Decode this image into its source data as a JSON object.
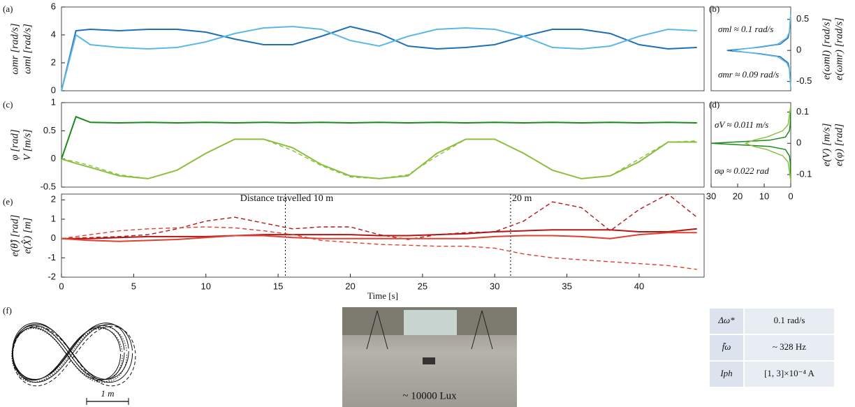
{
  "chart_data": [
    {
      "type": "line",
      "label": "(a)",
      "ylabels": [
        {
          "text": "ωmr [rad/s]",
          "color": "#5bb8e8"
        },
        {
          "text": "ωml [rad/s]",
          "color": "#1f6fb5"
        }
      ],
      "x": [
        0,
        1,
        2,
        4,
        6,
        8,
        10,
        12,
        14,
        16,
        18,
        20,
        22,
        24,
        26,
        28,
        30,
        32,
        34,
        36,
        38,
        40,
        42,
        44
      ],
      "xlim": [
        0,
        44.5
      ],
      "ylim": [
        0,
        6
      ],
      "yticks": [
        0,
        2,
        4,
        6
      ],
      "series": [
        {
          "color": "#1f6fb5",
          "values": [
            0,
            4.3,
            4.4,
            4.3,
            4.4,
            4.4,
            4.2,
            3.7,
            3.3,
            3.3,
            3.9,
            4.6,
            4.1,
            3.2,
            3.0,
            3.1,
            3.3,
            3.9,
            4.4,
            4.4,
            4.1,
            3.3,
            3.0,
            3.1
          ]
        },
        {
          "color": "#5bb8e8",
          "values": [
            0,
            4.0,
            3.3,
            3.1,
            3.0,
            3.1,
            3.5,
            4.1,
            4.5,
            4.6,
            4.4,
            3.6,
            3.2,
            3.9,
            4.4,
            4.5,
            4.4,
            3.9,
            3.1,
            3.0,
            3.2,
            3.9,
            4.4,
            4.3
          ]
        }
      ]
    },
    {
      "type": "density",
      "label": "(b)",
      "axis_side": "right",
      "ylabels": [
        {
          "text": "e(ωml) [rad/s]",
          "color": "#1f6fb5"
        },
        {
          "text": "e(ωmr) [rad/s]",
          "color": "#5bb8e8"
        }
      ],
      "annotations": [
        {
          "text": "σml ≈ 0.1 rad/s",
          "color": "#1f6fb5"
        },
        {
          "text": "σmr ≈ 0.09 rad/s",
          "color": "#5bb8e8"
        }
      ],
      "y": [
        -0.6,
        -0.3,
        -0.2,
        -0.1,
        -0.05,
        0,
        0.05,
        0.1,
        0.2,
        0.3,
        0.6
      ],
      "xlim": [
        0,
        30
      ],
      "xreverse": true,
      "ylim": [
        -0.65,
        0.7
      ],
      "yticks": [
        -0.5,
        0,
        0.5
      ],
      "series": [
        {
          "color": "#1f6fb5",
          "values": [
            0,
            0.5,
            1,
            4,
            12,
            24,
            12,
            4,
            1,
            0.5,
            0
          ]
        },
        {
          "color": "#5bb8e8",
          "values": [
            0,
            0.5,
            1.5,
            5,
            13,
            22,
            13,
            5,
            1.5,
            0.5,
            0
          ]
        }
      ]
    },
    {
      "type": "line",
      "label": "(c)",
      "ylabels": [
        {
          "text": "φ [rad]",
          "color": "#8cbf3f"
        },
        {
          "text": "V [m/s]",
          "color": "#1a8a1a"
        }
      ],
      "x": [
        0,
        1,
        2,
        4,
        6,
        8,
        10,
        12,
        14,
        16,
        18,
        20,
        22,
        24,
        26,
        28,
        30,
        32,
        34,
        36,
        38,
        40,
        42,
        44
      ],
      "xlim": [
        0,
        44.5
      ],
      "ylim": [
        -0.5,
        1
      ],
      "yticks": [
        -0.5,
        0,
        0.5,
        1
      ],
      "series": [
        {
          "color": "#8cbf3f",
          "dash": true,
          "values": [
            0,
            -0.05,
            -0.12,
            -0.28,
            -0.35,
            -0.2,
            0.1,
            0.35,
            0.35,
            0.15,
            -0.12,
            -0.32,
            -0.35,
            -0.28,
            0.05,
            0.35,
            0.35,
            0.1,
            -0.2,
            -0.35,
            -0.3,
            0,
            0.3,
            0.32
          ]
        },
        {
          "color": "#8cbf3f",
          "values": [
            0,
            -0.08,
            -0.15,
            -0.3,
            -0.35,
            -0.2,
            0.1,
            0.35,
            0.35,
            0.2,
            -0.1,
            -0.3,
            -0.35,
            -0.3,
            0.1,
            0.35,
            0.35,
            0.1,
            -0.2,
            -0.35,
            -0.3,
            -0.05,
            0.3,
            0.3
          ]
        },
        {
          "color": "#1a8a1a",
          "values": [
            0,
            0.75,
            0.65,
            0.64,
            0.65,
            0.64,
            0.65,
            0.64,
            0.65,
            0.64,
            0.65,
            0.64,
            0.65,
            0.64,
            0.65,
            0.64,
            0.65,
            0.64,
            0.65,
            0.64,
            0.65,
            0.64,
            0.65,
            0.64
          ]
        }
      ]
    },
    {
      "type": "density",
      "label": "(d)",
      "axis_side": "right",
      "ylabels": [
        {
          "text": "e(V) [m/s]",
          "color": "#1a8a1a"
        },
        {
          "text": "e(φ) [rad]",
          "color": "#8cbf3f"
        }
      ],
      "annotations": [
        {
          "text": "σV ≈ 0.011 m/s",
          "color": "#1a8a1a"
        },
        {
          "text": "σφ ≈ 0.022 rad",
          "color": "#8cbf3f"
        }
      ],
      "y": [
        -0.12,
        -0.06,
        -0.04,
        -0.02,
        -0.01,
        0,
        0.01,
        0.02,
        0.04,
        0.06,
        0.12
      ],
      "xlim": [
        0,
        30
      ],
      "xreverse": true,
      "xticks": [
        0,
        10,
        20,
        30
      ],
      "ylim": [
        -0.14,
        0.13
      ],
      "yticks": [
        -0.1,
        0,
        0.1
      ],
      "series": [
        {
          "color": "#1a8a1a",
          "values": [
            0,
            0.2,
            0.5,
            2,
            8,
            30,
            8,
            2,
            0.5,
            0.2,
            0
          ]
        },
        {
          "color": "#8cbf3f",
          "values": [
            0,
            1,
            3,
            9,
            14,
            17,
            14,
            9,
            3,
            1,
            0
          ]
        }
      ]
    },
    {
      "type": "line",
      "label": "(e)",
      "xlabel": "Time [s]",
      "ylabels": [
        {
          "text": "e(θ̂) [rad]",
          "color": "#e04030"
        },
        {
          "text": "e(X̂) [m]",
          "color": "#b01818"
        }
      ],
      "markers": [
        {
          "x": 15.5,
          "label": "Distance travelled 10 m"
        },
        {
          "x": 31.1,
          "label": "20 m"
        }
      ],
      "x": [
        0,
        2,
        4,
        6,
        8,
        10,
        12,
        14,
        16,
        18,
        20,
        22,
        24,
        26,
        28,
        30,
        32,
        34,
        36,
        38,
        40,
        42,
        44
      ],
      "xlim": [
        0,
        44.5
      ],
      "ylim": [
        -2,
        2.3
      ],
      "yticks": [
        -2,
        -1,
        0,
        1,
        2
      ],
      "xticks": [
        0,
        5,
        10,
        15,
        20,
        25,
        30,
        35,
        40
      ],
      "series": [
        {
          "color": "#b01818",
          "dash": true,
          "values": [
            0,
            0.05,
            0.1,
            0.2,
            0.5,
            0.9,
            1.1,
            0.8,
            0.5,
            0.6,
            0.6,
            0.2,
            -0.05,
            0.2,
            0.3,
            0.35,
            0.9,
            1.9,
            1.6,
            0.4,
            1.5,
            2.3,
            1.1
          ]
        },
        {
          "color": "#b01818",
          "values": [
            0,
            0,
            0.05,
            0.1,
            0.1,
            0.1,
            0.15,
            0.2,
            0.2,
            0.2,
            0.2,
            0.15,
            0.15,
            0.2,
            0.25,
            0.35,
            0.4,
            0.45,
            0.45,
            0.45,
            0.35,
            0.35,
            0.5
          ]
        },
        {
          "color": "#e04030",
          "dash": true,
          "values": [
            0,
            0.2,
            0.4,
            0.5,
            0.55,
            0.6,
            0.55,
            0.4,
            0.2,
            -0.1,
            -0.2,
            -0.3,
            -0.35,
            -0.4,
            -0.4,
            -0.5,
            -0.8,
            -1.0,
            -1.1,
            -1.2,
            -1.3,
            -1.4,
            -1.6
          ]
        },
        {
          "color": "#e04030",
          "values": [
            0,
            -0.1,
            -0.15,
            -0.1,
            -0.05,
            0.05,
            0.15,
            0.15,
            0.05,
            0,
            0,
            0,
            0,
            0,
            0,
            0.1,
            0.15,
            0.15,
            0.1,
            0,
            0.2,
            0.3,
            0.3
          ]
        }
      ]
    }
  ],
  "figure_f": {
    "label": "(f)",
    "scale": "1 m"
  },
  "photo": {
    "caption": "~ 10000 Lux"
  },
  "table": {
    "rows": [
      [
        "Δω*",
        "0.1 rad/s"
      ],
      [
        "f̄ω",
        "~ 328 Hz"
      ],
      [
        "Iph",
        "[1, 3]×10⁻⁴ A"
      ]
    ]
  }
}
